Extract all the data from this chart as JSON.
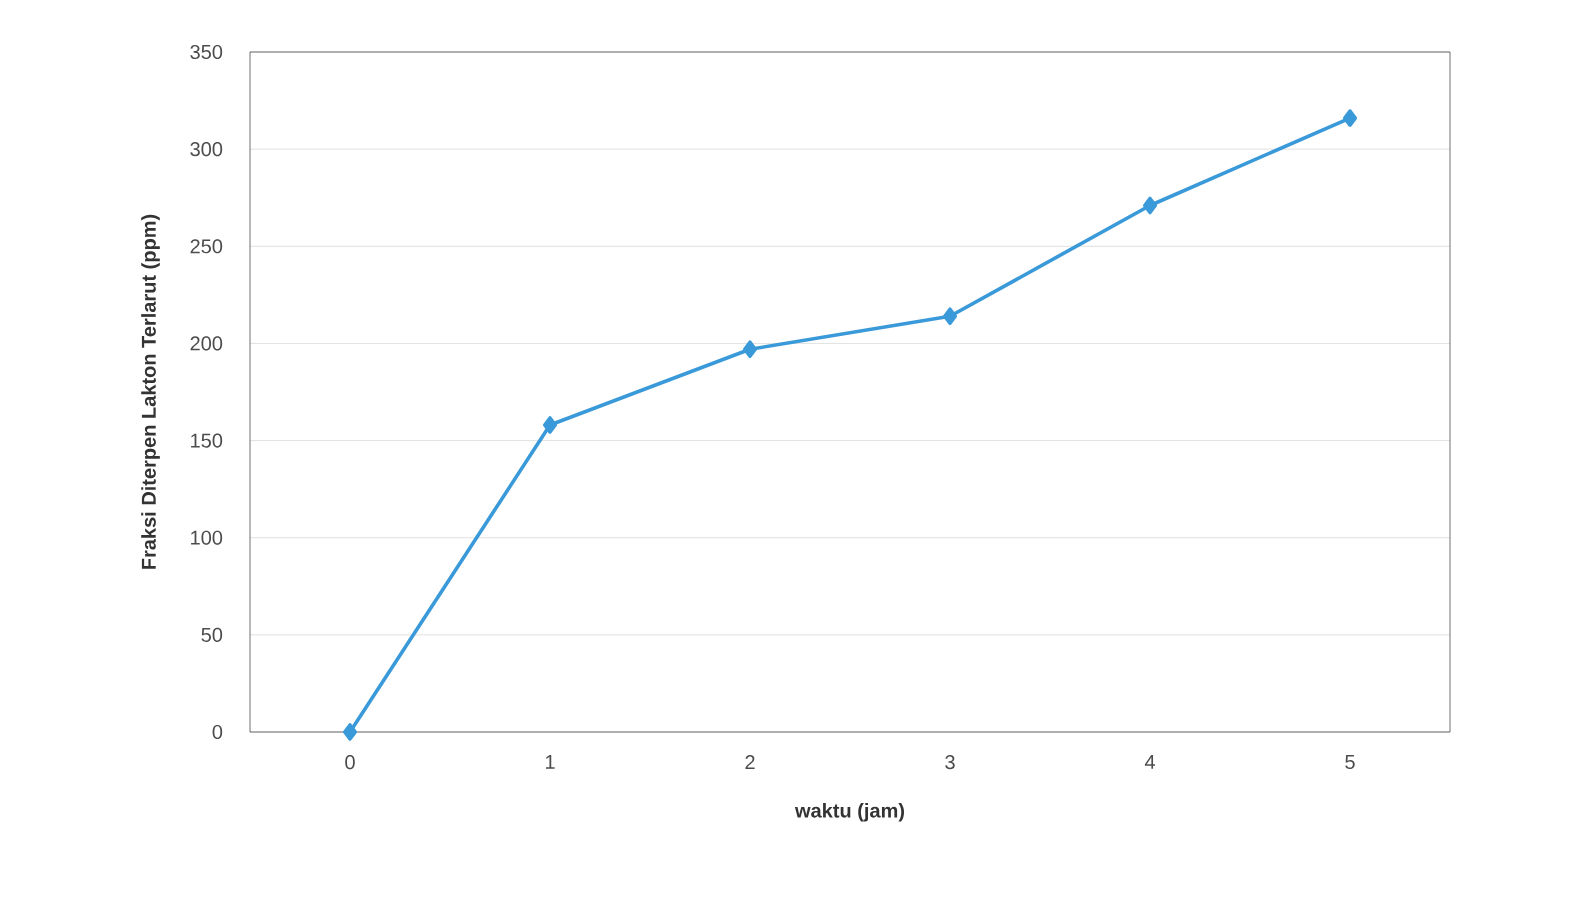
{
  "chart_data": {
    "type": "line",
    "xlabel": "waktu (jam)",
    "ylabel": "Fraksi Diterpen Lakton Terlarut (ppm)",
    "categories": [
      "0",
      "1",
      "2",
      "3",
      "4",
      "5"
    ],
    "series": [
      {
        "color": "#3a9ad9",
        "values": [
          0,
          158,
          197,
          214,
          271,
          316
        ]
      }
    ],
    "ylim": [
      0,
      350
    ],
    "yticks": [
      0,
      50,
      100,
      150,
      200,
      250,
      300,
      350
    ],
    "grid": "y",
    "marker": "diamond",
    "line_style": "solid"
  }
}
